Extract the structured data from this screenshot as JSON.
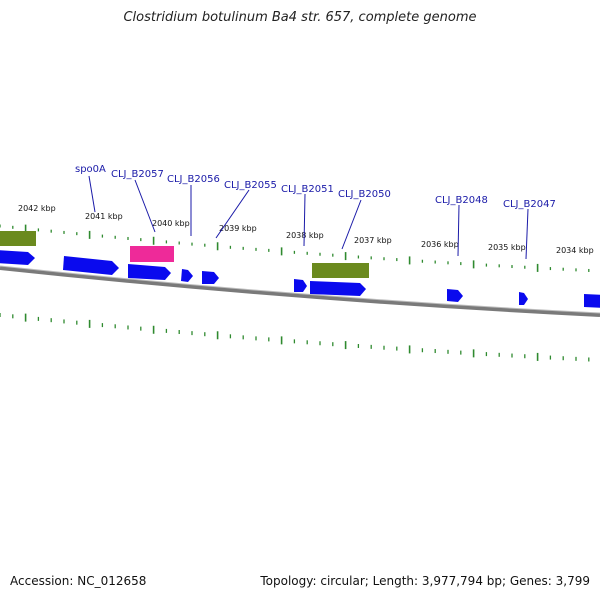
{
  "title": "Clostridium botulinum Ba4 str. 657, complete genome",
  "footer": {
    "accession": "Accession: NC_012658",
    "summary": "Topology: circular; Length: 3,977,794 bp; Genes: 3,799"
  },
  "colors": {
    "cds": "#0a0aee",
    "highlight": "#ee2a99",
    "region": "#6b8a1e",
    "tick": "#2f8a2f",
    "backbone": "#7a7a7a",
    "label": "#1a1aa8"
  },
  "kbp_labels": [
    "2042 kbp",
    "2041 kbp",
    "2040 kbp",
    "2039 kbp",
    "2038 kbp",
    "2037 kbp",
    "2036 kbp",
    "2035 kbp",
    "2034 kbp"
  ],
  "gene_labels": [
    "spo0A",
    "CLJ_B2057",
    "CLJ_B2056",
    "CLJ_B2055",
    "CLJ_B2051",
    "CLJ_B2050",
    "CLJ_B2048",
    "CLJ_B2047"
  ]
}
